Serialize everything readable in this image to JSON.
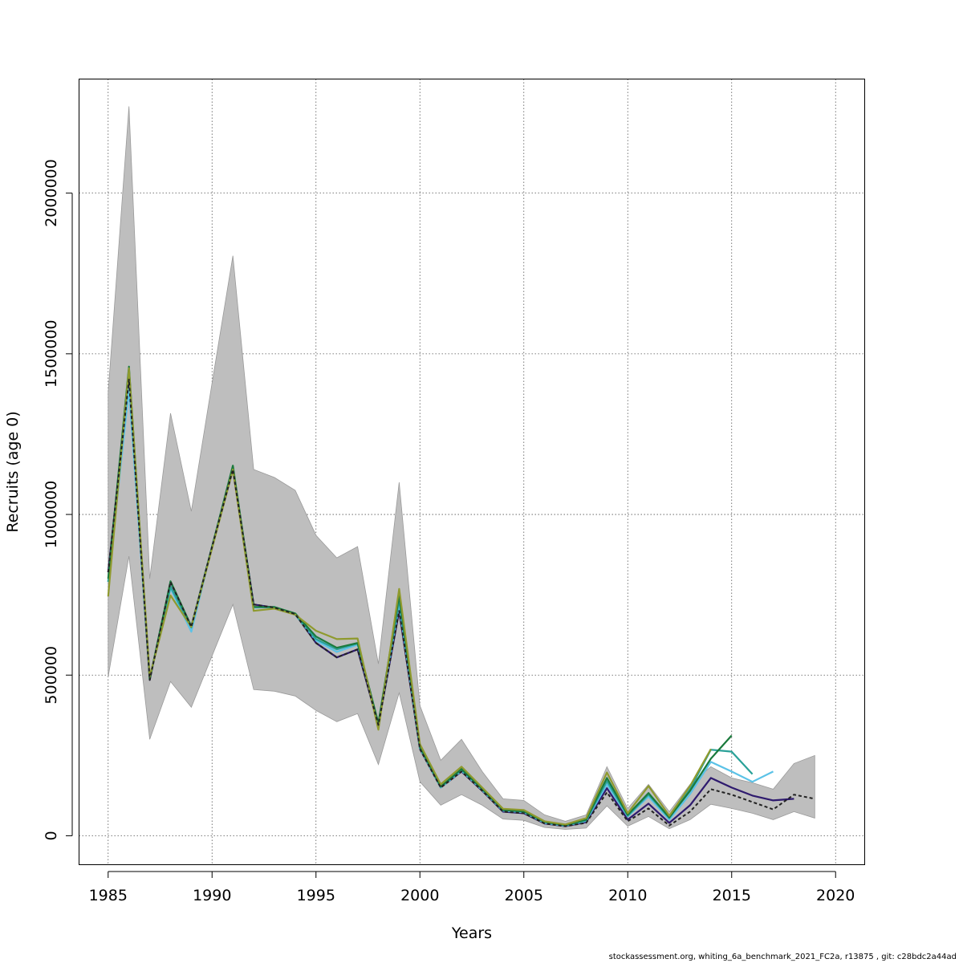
{
  "chart_data": {
    "type": "line",
    "xlabel": "Years",
    "ylabel": "Recruits (age 0)",
    "xlim": [
      1983.6,
      2021.4
    ],
    "ylim": [
      -90000,
      2355000
    ],
    "x_ticks": [
      1985,
      1990,
      1995,
      2000,
      2005,
      2010,
      2015,
      2020
    ],
    "y_ticks": [
      0,
      500000,
      1000000,
      1500000,
      2000000
    ],
    "grid": true,
    "colors": {
      "ci_band": "#bebebe",
      "ci_band_edge": "#9a9a9a",
      "final": "#222222",
      "grid": "#555555"
    },
    "confidence_band": {
      "x": [
        1985,
        1986,
        1987,
        1988,
        1989,
        1990,
        1991,
        1992,
        1993,
        1994,
        1995,
        1996,
        1997,
        1998,
        1999,
        2000,
        2001,
        2002,
        2003,
        2004,
        2005,
        2006,
        2007,
        2008,
        2009,
        2010,
        2011,
        2012,
        2013,
        2014,
        2015,
        2016,
        2017,
        2018,
        2019
      ],
      "lower": [
        495000,
        870000,
        300000,
        480000,
        400000,
        560000,
        720000,
        455000,
        450000,
        435000,
        390000,
        355000,
        380000,
        222000,
        445000,
        168000,
        95000,
        128000,
        95000,
        52000,
        48000,
        26000,
        20000,
        24000,
        93000,
        30000,
        60000,
        22000,
        50000,
        98000,
        85000,
        70000,
        50000,
        75000,
        55000
      ],
      "upper": [
        1380000,
        2270000,
        800000,
        1315000,
        1010000,
        1410000,
        1805000,
        1140000,
        1115000,
        1075000,
        935000,
        865000,
        900000,
        535000,
        1100000,
        405000,
        235000,
        300000,
        200000,
        115000,
        110000,
        65000,
        45000,
        65000,
        215000,
        85000,
        160000,
        75000,
        160000,
        215000,
        180000,
        165000,
        145000,
        225000,
        250000
      ]
    },
    "series": [
      {
        "color": "#2e1a6e",
        "x": [
          1985,
          1986,
          1987,
          1988,
          1989,
          1990,
          1991,
          1992,
          1993,
          1994,
          1995,
          1996,
          1997,
          1998,
          1999,
          2000,
          2001,
          2002,
          2003,
          2004,
          2005,
          2006,
          2007,
          2008,
          2009,
          2010,
          2011,
          2012,
          2013,
          2014,
          2015,
          2016,
          2017,
          2018
        ],
        "values": [
          820000,
          1420000,
          485000,
          790000,
          650000,
          900000,
          1140000,
          720000,
          710000,
          690000,
          600000,
          555000,
          580000,
          345000,
          700000,
          270000,
          150000,
          200000,
          140000,
          75000,
          70000,
          38000,
          30000,
          42000,
          148000,
          50000,
          100000,
          40000,
          95000,
          180000,
          150000,
          125000,
          110000,
          115000
        ]
      },
      {
        "color": "#5bc2e7",
        "x": [
          1985,
          1986,
          1987,
          1988,
          1989,
          1990,
          1991,
          1992,
          1993,
          1994,
          1995,
          1996,
          1997,
          1998,
          1999,
          2000,
          2001,
          2002,
          2003,
          2004,
          2005,
          2006,
          2007,
          2008,
          2009,
          2010,
          2011,
          2012,
          2013,
          2014,
          2015,
          2016,
          2017
        ],
        "values": [
          790000,
          1390000,
          490000,
          770000,
          635000,
          900000,
          1145000,
          710000,
          712000,
          688000,
          608000,
          572000,
          595000,
          348000,
          720000,
          272000,
          150000,
          202000,
          142000,
          78000,
          73000,
          40000,
          31000,
          46000,
          160000,
          60000,
          122000,
          50000,
          130000,
          230000,
          200000,
          168000,
          200000
        ]
      },
      {
        "color": "#2aa198",
        "x": [
          1985,
          1986,
          1987,
          1988,
          1989,
          1990,
          1991,
          1992,
          1993,
          1994,
          1995,
          1996,
          1997,
          1998,
          1999,
          2000,
          2001,
          2002,
          2003,
          2004,
          2005,
          2006,
          2007,
          2008,
          2009,
          2010,
          2011,
          2012,
          2013,
          2014,
          2015,
          2016
        ],
        "values": [
          790000,
          1445000,
          490000,
          775000,
          648000,
          900000,
          1145000,
          712000,
          711000,
          688000,
          612000,
          580000,
          598000,
          348000,
          735000,
          275000,
          152000,
          205000,
          145000,
          80000,
          75000,
          42000,
          32000,
          48000,
          170000,
          62000,
          128000,
          55000,
          145000,
          268000,
          262000,
          192000
        ]
      },
      {
        "color": "#1a7a3c",
        "x": [
          1985,
          1986,
          1987,
          1988,
          1989,
          1990,
          1991,
          1992,
          1993,
          1994,
          1995,
          1996,
          1997,
          1998,
          1999,
          2000,
          2001,
          2002,
          2003,
          2004,
          2005,
          2006,
          2007,
          2008,
          2009,
          2010,
          2011,
          2012,
          2013,
          2014,
          2015
        ],
        "values": [
          800000,
          1460000,
          487000,
          792000,
          652000,
          900000,
          1152000,
          712000,
          712000,
          692000,
          620000,
          585000,
          600000,
          350000,
          748000,
          276000,
          153000,
          208000,
          145000,
          80000,
          76000,
          43000,
          33000,
          50000,
          180000,
          65000,
          133000,
          57000,
          140000,
          240000,
          312000
        ]
      },
      {
        "color": "#8f9a2e",
        "x": [
          1985,
          1986,
          1987,
          1988,
          1989,
          1990,
          1991,
          1992,
          1993,
          1994,
          1995,
          1996,
          1997,
          1998,
          1999,
          2000,
          2001,
          2002,
          2003,
          2004,
          2005,
          2006,
          2007,
          2008,
          2009,
          2010,
          2011,
          2012,
          2013,
          2014
        ],
        "values": [
          745000,
          1455000,
          495000,
          748000,
          650000,
          895000,
          1140000,
          700000,
          707000,
          688000,
          638000,
          612000,
          614000,
          330000,
          768000,
          285000,
          160000,
          215000,
          150000,
          84000,
          80000,
          45000,
          35000,
          55000,
          197000,
          70000,
          155000,
          62000,
          155000,
          270000
        ]
      },
      {
        "color": "#222222",
        "dashed": true,
        "x": [
          1985,
          1986,
          1987,
          1988,
          1989,
          1990,
          1991,
          1992,
          1993,
          1994,
          1995,
          1996,
          1997,
          1998,
          1999,
          2000,
          2001,
          2002,
          2003,
          2004,
          2005,
          2006,
          2007,
          2008,
          2009,
          2010,
          2011,
          2012,
          2013,
          2014,
          2015,
          2016,
          2017,
          2018,
          2019
        ],
        "values": [
          820000,
          1420000,
          485000,
          790000,
          650000,
          900000,
          1140000,
          720000,
          710000,
          690000,
          600000,
          555000,
          580000,
          345000,
          700000,
          270000,
          150000,
          200000,
          140000,
          75000,
          70000,
          38000,
          30000,
          40000,
          135000,
          45000,
          85000,
          32000,
          75000,
          145000,
          128000,
          105000,
          82000,
          128000,
          115000
        ]
      }
    ]
  },
  "footer": "stockassessment.org, whiting_6a_benchmark_2021_FC2a, r13875 , git: c28bdc2a44ad"
}
